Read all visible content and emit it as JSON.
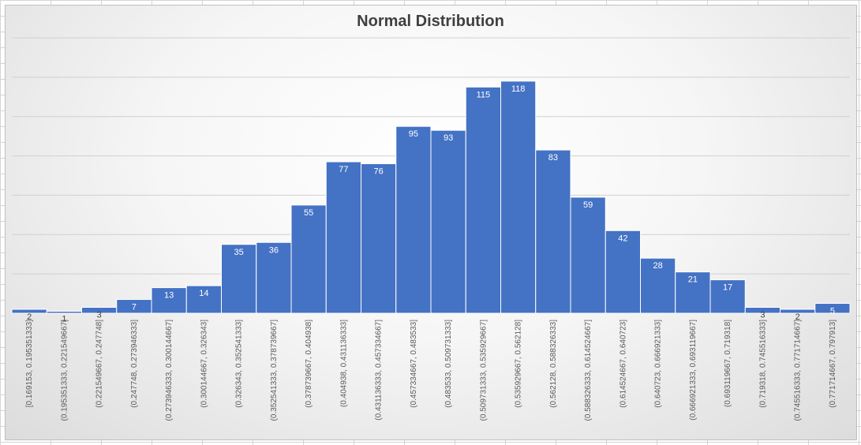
{
  "chart_data": {
    "type": "bar",
    "title": "Normal Distribution",
    "xlabel": "",
    "ylabel": "",
    "ylim": [
      0,
      140
    ],
    "grid": true,
    "bar_color": "#4472c4",
    "categories": [
      "[0.169153, 0.195351333]",
      "(0.195351333, 0.221549667]",
      "(0.221549667, 0.247748]",
      "(0.247748, 0.273946333]",
      "(0.273946333, 0.300144667]",
      "(0.300144667, 0.326343]",
      "(0.326343, 0.352541333]",
      "(0.352541333, 0.378739667]",
      "(0.378739667, 0.404938]",
      "(0.404938, 0.431136333]",
      "(0.431136333, 0.457334667]",
      "(0.457334667, 0.483533]",
      "(0.483533, 0.509731333]",
      "(0.509731333, 0.535929667]",
      "(0.535929667, 0.562128]",
      "(0.562128, 0.588326333]",
      "(0.588326333, 0.614524667]",
      "(0.614524667, 0.640723]",
      "(0.640723, 0.666921333]",
      "(0.666921333, 0.693119667]",
      "(0.693119667, 0.719318]",
      "(0.719318, 0.745516333]",
      "(0.745516333, 0.771714667]",
      "(0.771714667, 0.797913]"
    ],
    "values": [
      2,
      1,
      3,
      7,
      13,
      14,
      35,
      36,
      55,
      77,
      76,
      95,
      93,
      115,
      118,
      83,
      59,
      42,
      28,
      21,
      17,
      3,
      2,
      5
    ]
  }
}
